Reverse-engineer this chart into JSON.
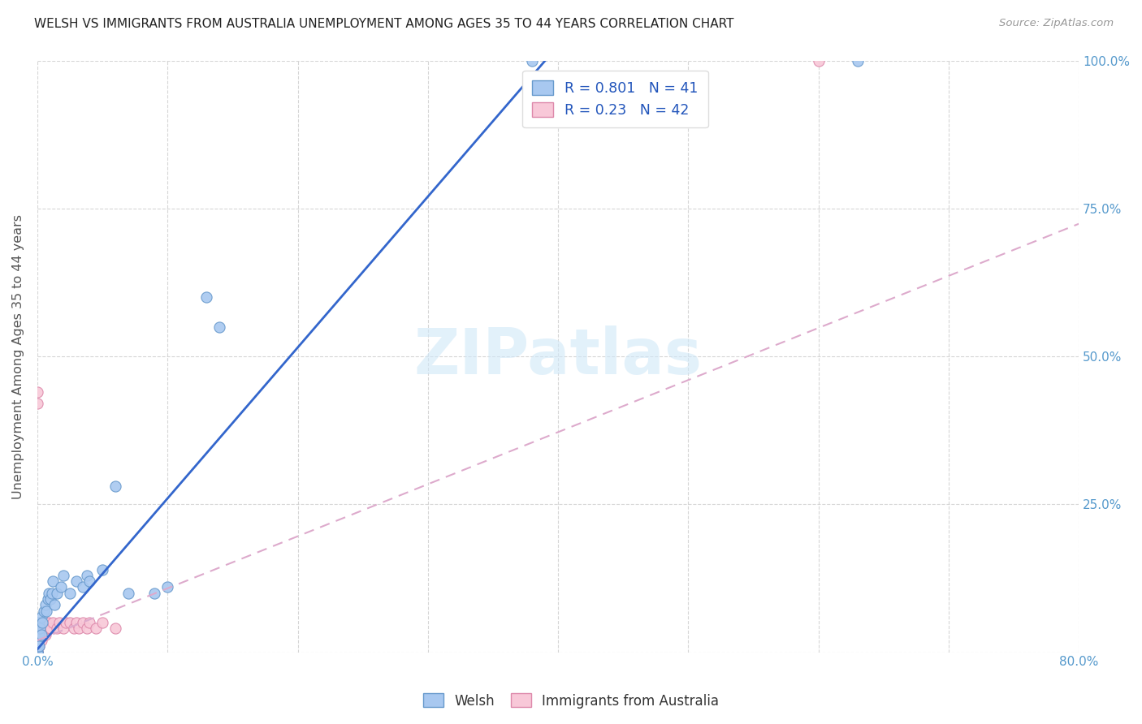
{
  "title": "WELSH VS IMMIGRANTS FROM AUSTRALIA UNEMPLOYMENT AMONG AGES 35 TO 44 YEARS CORRELATION CHART",
  "source": "Source: ZipAtlas.com",
  "ylabel": "Unemployment Among Ages 35 to 44 years",
  "xlim": [
    0.0,
    0.8
  ],
  "ylim": [
    0.0,
    1.0
  ],
  "welsh_color": "#a8c8f0",
  "welsh_edge_color": "#6699cc",
  "aus_color": "#f8c8d8",
  "aus_edge_color": "#dd88aa",
  "trend_welsh_color": "#3366cc",
  "trend_aus_color": "#ddaacc",
  "welsh_R": 0.801,
  "welsh_N": 41,
  "aus_R": 0.23,
  "aus_N": 42,
  "legend_R_color": "#2255bb",
  "watermark": "ZIPatlas",
  "welsh_x": [
    0.0,
    0.0,
    0.0,
    0.0,
    0.0,
    0.0,
    0.0,
    0.0,
    0.001,
    0.001,
    0.001,
    0.002,
    0.003,
    0.003,
    0.004,
    0.005,
    0.006,
    0.007,
    0.008,
    0.009,
    0.01,
    0.011,
    0.012,
    0.013,
    0.015,
    0.018,
    0.02,
    0.025,
    0.03,
    0.035,
    0.038,
    0.04,
    0.05,
    0.06,
    0.07,
    0.09,
    0.1,
    0.13,
    0.14,
    0.38,
    0.63
  ],
  "welsh_y": [
    0.0,
    0.0,
    0.0,
    0.01,
    0.01,
    0.02,
    0.03,
    0.05,
    0.01,
    0.03,
    0.05,
    0.04,
    0.03,
    0.06,
    0.05,
    0.07,
    0.08,
    0.07,
    0.09,
    0.1,
    0.09,
    0.1,
    0.12,
    0.08,
    0.1,
    0.11,
    0.13,
    0.1,
    0.12,
    0.11,
    0.13,
    0.12,
    0.14,
    0.28,
    0.1,
    0.1,
    0.11,
    0.6,
    0.55,
    1.0,
    1.0
  ],
  "aus_x": [
    0.0,
    0.0,
    0.0,
    0.0,
    0.0,
    0.0,
    0.0,
    0.0,
    0.0,
    0.0,
    0.0,
    0.0,
    0.001,
    0.001,
    0.001,
    0.002,
    0.002,
    0.003,
    0.003,
    0.004,
    0.005,
    0.006,
    0.007,
    0.008,
    0.009,
    0.01,
    0.012,
    0.015,
    0.017,
    0.02,
    0.022,
    0.025,
    0.028,
    0.03,
    0.032,
    0.035,
    0.038,
    0.04,
    0.045,
    0.05,
    0.06,
    0.6
  ],
  "aus_y": [
    0.0,
    0.0,
    0.0,
    0.0,
    0.0,
    0.01,
    0.01,
    0.02,
    0.03,
    0.04,
    0.42,
    0.44,
    0.01,
    0.02,
    0.04,
    0.02,
    0.03,
    0.02,
    0.04,
    0.03,
    0.04,
    0.03,
    0.05,
    0.04,
    0.05,
    0.04,
    0.05,
    0.04,
    0.05,
    0.04,
    0.05,
    0.05,
    0.04,
    0.05,
    0.04,
    0.05,
    0.04,
    0.05,
    0.04,
    0.05,
    0.04,
    1.0
  ]
}
